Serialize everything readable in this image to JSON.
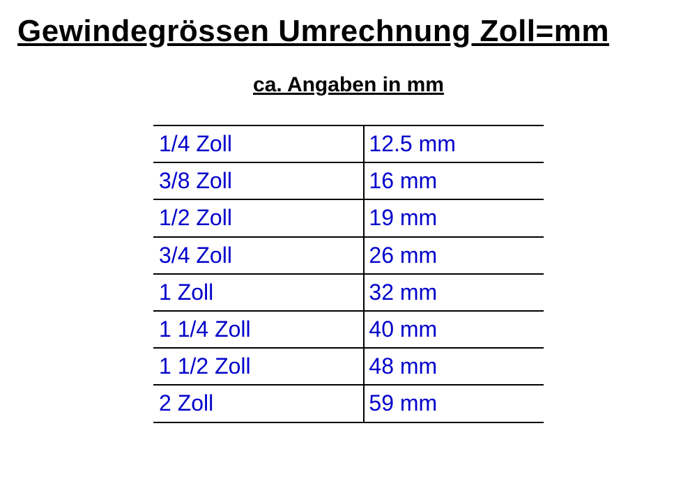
{
  "title": "Gewindegrössen Umrechnung Zoll=mm",
  "subtitle": "ca. Angaben in mm",
  "table": {
    "columns": [
      "zoll",
      "mm"
    ],
    "rows": [
      {
        "zoll": "1/4 Zoll",
        "mm": "12.5 mm"
      },
      {
        "zoll": "3/8 Zoll",
        "mm": "16 mm"
      },
      {
        "zoll": "1/2 Zoll",
        "mm": "19 mm"
      },
      {
        "zoll": "3/4 Zoll",
        "mm": "26 mm"
      },
      {
        "zoll": "1 Zoll",
        "mm": "32 mm"
      },
      {
        "zoll": "1 1/4 Zoll",
        "mm": "40 mm"
      },
      {
        "zoll": "1 1/2 Zoll",
        "mm": "48 mm"
      },
      {
        "zoll": "2 Zoll",
        "mm": "59 mm"
      }
    ],
    "cell_text_color": "#0000cc",
    "border_color": "#000000",
    "cell_fontsize": 32
  },
  "title_fontsize": 44,
  "subtitle_fontsize": 30,
  "background_color": "#ffffff"
}
